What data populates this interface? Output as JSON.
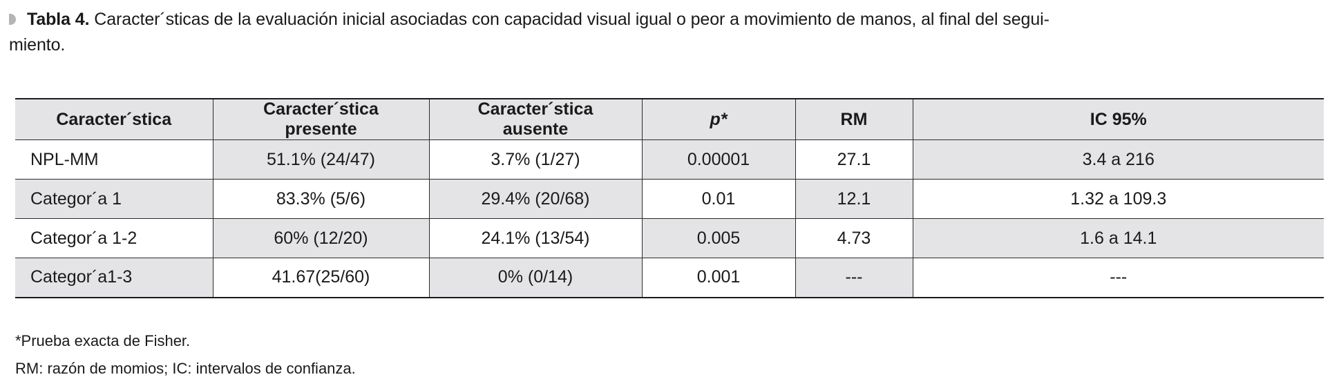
{
  "caption": {
    "label": "Tabla 4.",
    "text": "Caracter´sticas de la evaluación inicial asociadas con capacidad visual igual o peor a movimiento de manos, al final del segui-",
    "text_line2": "miento."
  },
  "table": {
    "headers": [
      "Caracter´stica",
      "Caracter´stica presente",
      "Caracter´stica ausente",
      "p*",
      "RM",
      "IC 95%"
    ],
    "rows": [
      [
        "NPL-MM",
        "51.1% (24/47)",
        "3.7% (1/27)",
        "0.00001",
        "27.1",
        "3.4 a 216"
      ],
      [
        "Categor´a 1",
        "83.3% (5/6)",
        "29.4% (20/68)",
        "0.01",
        "12.1",
        "1.32 a 109.3"
      ],
      [
        "Categor´a 1-2",
        "60% (12/20)",
        "24.1% (13/54)",
        "0.005",
        "4.73",
        "1.6 a 14.1"
      ],
      [
        "Categor´a1-3",
        "41.67(25/60)",
        "0% (0/14)",
        "0.001",
        "---",
        "---"
      ]
    ]
  },
  "notes": [
    "*Prueba exacta de Fisher.",
    "RM: razón de momios; IC: intervalos de confianza."
  ]
}
